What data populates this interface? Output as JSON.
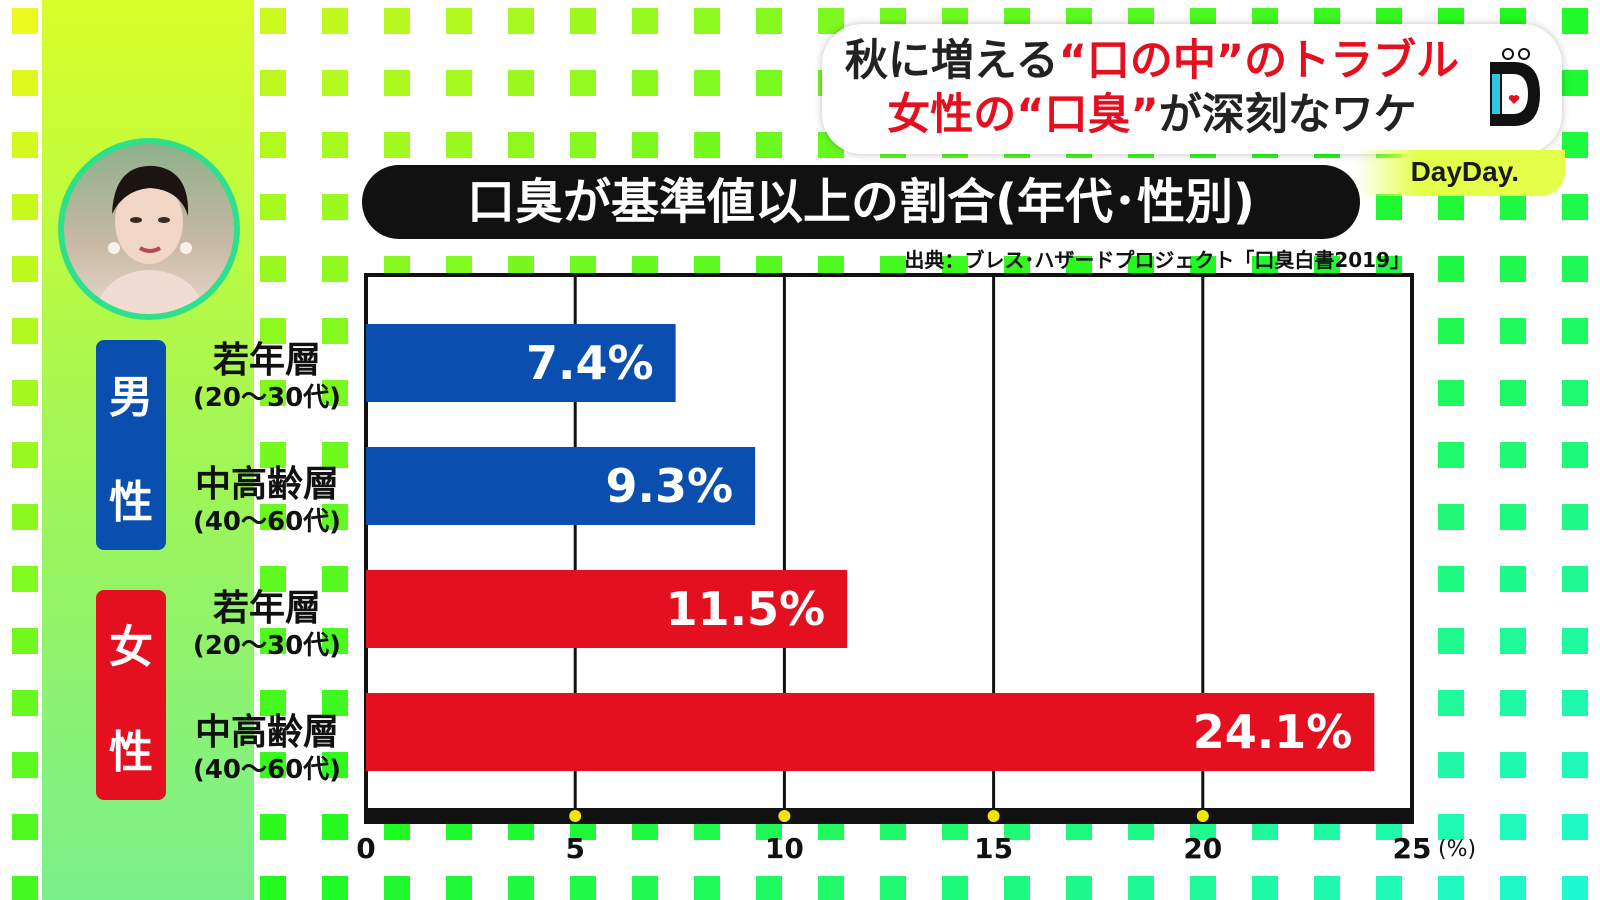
{
  "headline": {
    "line1": [
      {
        "text": "秋に増える",
        "red": false
      },
      {
        "text": "“口の中”のトラブル",
        "red": true
      }
    ],
    "line2": [
      {
        "text": "女性の",
        "red": true
      },
      {
        "text": "“口臭”",
        "red": true
      },
      {
        "text": "が深刻なワケ",
        "red": false
      }
    ]
  },
  "logo": {
    "letter": "D",
    "show_name": "DayDay."
  },
  "colors": {
    "male": "#0a4faf",
    "female": "#e5101f",
    "axis": "#111111",
    "tick_dot": "#f2e600"
  },
  "groups": [
    {
      "label_lines": [
        "男",
        "性"
      ],
      "color_key": "male"
    },
    {
      "label_lines": [
        "女",
        "性"
      ],
      "color_key": "female"
    }
  ],
  "chart_data": {
    "type": "bar",
    "orientation": "horizontal",
    "title": "口臭が基準値以上の割合(年代･性別)",
    "source": "出典：ブレス･ハザードプロジェクト「口臭白書2019」",
    "categories": [
      {
        "name": "若年層",
        "range": "(20〜30代)",
        "group": "男性"
      },
      {
        "name": "中高齢層",
        "range": "(40〜60代)",
        "group": "男性"
      },
      {
        "name": "若年層",
        "range": "(20〜30代)",
        "group": "女性"
      },
      {
        "name": "中高齢層",
        "range": "(40〜60代)",
        "group": "女性"
      }
    ],
    "values": [
      7.4,
      9.3,
      11.5,
      24.1
    ],
    "value_labels": [
      "7.4%",
      "9.3%",
      "11.5%",
      "24.1%"
    ],
    "bar_colors": [
      "male",
      "male",
      "female",
      "female"
    ],
    "xlim": [
      0,
      25
    ],
    "xticks": [
      0,
      5,
      10,
      15,
      20,
      25
    ],
    "xunit": "(%)",
    "grid": true
  }
}
